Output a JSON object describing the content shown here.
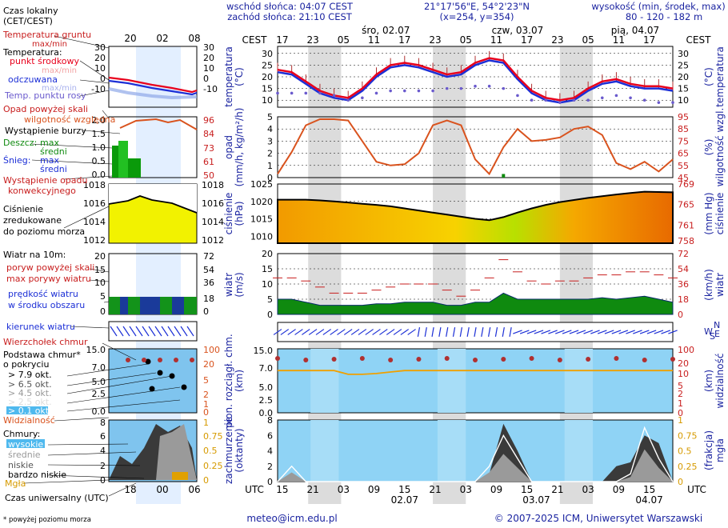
{
  "header": {
    "sunrise": "wschód słońca: 04:07 CEST",
    "sunset": "zachód słońca: 21:10 CEST",
    "coords": "21°17'56\"E, 54°2'23\"N",
    "grid": "(x=254, y=354)",
    "height_title": "wysokość (min, środek, max)",
    "height_values": "80 - 120 - 182 m"
  },
  "legend": {
    "local_time_1": "Czas lokalny",
    "local_time_2": "(CET/CEST)",
    "soil_temp_1": "Temperatura gruntu",
    "soil_temp_2": "max/min",
    "temperature": "Temperatura:",
    "center_point": "punkt środkowy",
    "maxmin1": "max/min",
    "feels": "odczuwana",
    "maxmin2": "max/min",
    "dew": "Temp. punktu rosy",
    "precip_above": "Opad powyżej skali",
    "humidity": "wilgotność względna",
    "storm": "Wystąpienie burzy",
    "rain": "Deszcz:",
    "max": "max",
    "mean": "średni",
    "snow": "Śnieg:",
    "conv_1": "Wystąpienie opadu",
    "conv_2": "konwekcyjnego",
    "press_1": "Ciśnienie",
    "press_2": "zredukowane",
    "press_3": "do poziomu morza",
    "wind_1": "Wiatr na 10m:",
    "gust_above": "poryw powyżej skali",
    "gust_max": "max porywy wiatru",
    "wind_speed_1": "prędkość wiatru",
    "wind_speed_2": "w środku obszaru",
    "wind_dir": "kierunek wiatru",
    "cloud_top": "Wierzchołek chmur",
    "cloud_base_1": "Podstawa chmur*",
    "cloud_base_2": "o pokryciu",
    "okt1": "> 7.9 okt.",
    "okt2": "> 6.5 okt.",
    "okt3": "> 4.5 okt.",
    "okt4": "> 2.5 okt.",
    "okt5": "> 0.1 okt.",
    "visibility": "Widzialność",
    "clouds": "Chmury:",
    "high": "wysokie",
    "middle": "średnie",
    "low": "niskie",
    "very_low": "bardzo niskie",
    "fog": "Mgła",
    "utc": "Czas uniwersalny (UTC)",
    "footnote": "* powyżej poziomu morza",
    "mini_top_ticks": [
      "20",
      "02",
      "08"
    ],
    "mini_bottom_ticks": [
      "18",
      "00",
      "06"
    ]
  },
  "axis_labels": {
    "temp_left": "temperatura",
    "temp_left_unit": "(°C)",
    "temp_right": "temperatura",
    "temp_right_unit": "(°C)",
    "precip_left": "opad",
    "precip_left_unit": "(mm/h, kg/m²/h)",
    "hum_right": "wilgotność wzgl.",
    "hum_right_unit": "(%)",
    "press_left": "ciśnienie",
    "press_left_unit": "(hPa)",
    "press_right": "ciśnienie",
    "press_right_unit": "(mm Hg)",
    "wind_left": "wiatr",
    "wind_left_unit": "(m/s)",
    "wind_right": "wiatr",
    "wind_right_unit": "(km/h)",
    "cloud_left_1": "pion. rozciągł. chm.",
    "cloud_left_2": "(km)",
    "vis_right": "widzialność",
    "vis_right_unit": "(km)",
    "cov_left_1": "zachmurzenie",
    "cov_left_2": "(oktanty)",
    "fog_right": "mgła",
    "fog_right_unit": "(frakcja)",
    "cest": "CEST",
    "utc": "UTC",
    "compass": [
      "N",
      "W",
      "E",
      "S"
    ]
  },
  "time_axis": {
    "days_top": [
      "śro, 02.07",
      "czw, 03.07",
      "pią, 04.07"
    ],
    "cest_ticks": [
      "17",
      "23",
      "05",
      "11",
      "17",
      "23",
      "05",
      "11",
      "17",
      "23",
      "05",
      "11",
      "17"
    ],
    "utc_ticks": [
      "15",
      "21",
      "03",
      "09",
      "15",
      "21",
      "03",
      "09",
      "15",
      "21",
      "03",
      "09",
      "15"
    ],
    "days_bottom": [
      "02.07",
      "03.07",
      "04.07"
    ]
  },
  "footer": {
    "email": "meteo@icm.edu.pl",
    "copyright": "© 2007-2025 ICM, Uniwersytet Warszawski"
  },
  "colors": {
    "night_band": "#dcdcdc",
    "sky": "#8fd3f5",
    "temp": "#e8001c",
    "feels": "#1c2fd6",
    "dew": "#6a5acd",
    "humidity": "#d9531e",
    "pressure_fill": "#f29a00",
    "wind_fill": "#0f8a0f",
    "axis_blue": "#1a23a0",
    "axis_red": "#c81e1e"
  },
  "chart_data": [
    {
      "type": "line",
      "title": "temperatura (°C)",
      "x_hours": [
        0,
        3,
        6,
        9,
        12,
        15,
        18,
        21,
        24,
        27,
        30,
        33,
        36,
        39,
        42,
        45,
        48,
        51,
        54,
        57,
        60,
        63,
        66,
        69,
        72,
        75,
        78,
        81,
        84
      ],
      "ylim": [
        7,
        33
      ],
      "yticks": [
        10,
        15,
        20,
        25,
        30
      ],
      "series": [
        {
          "name": "temperatura",
          "values": [
            23,
            22,
            18,
            14,
            12,
            11,
            15,
            21,
            25,
            26,
            25,
            23,
            21,
            22,
            26,
            28,
            27,
            20,
            14,
            11,
            10,
            11,
            15,
            18,
            19,
            17,
            16,
            16,
            15
          ]
        },
        {
          "name": "odczuwana",
          "values": [
            22,
            21,
            17,
            13,
            11,
            10,
            14,
            20,
            24,
            25,
            24,
            22,
            20,
            21,
            25,
            27,
            26,
            19,
            13,
            10,
            9,
            10,
            14,
            17,
            18,
            16,
            15,
            15,
            14
          ]
        },
        {
          "name": "punkt rosy",
          "values": [
            13,
            13,
            13,
            13,
            12,
            10,
            11,
            13,
            14,
            14,
            14,
            14,
            15,
            15,
            16,
            16,
            15,
            12,
            10,
            10,
            9,
            10,
            10,
            11,
            12,
            11,
            10,
            9,
            9
          ]
        }
      ]
    },
    {
      "type": "line",
      "title": "opad (mm/h) / wilgotność wzgl. (%)",
      "x_hours": [
        0,
        3,
        6,
        9,
        12,
        15,
        18,
        21,
        24,
        27,
        30,
        33,
        36,
        39,
        42,
        45,
        48,
        51,
        54,
        57,
        60,
        63,
        66,
        69,
        72,
        75,
        78,
        81,
        84
      ],
      "ylim": [
        0,
        5
      ],
      "yticks": [
        0,
        1,
        2,
        3,
        4,
        5
      ],
      "y2lim": [
        45,
        95
      ],
      "y2ticks": [
        45,
        55,
        65,
        75,
        85,
        95
      ],
      "series": [
        {
          "name": "wilgotność",
          "values": [
            48,
            66,
            88,
            93,
            93,
            92,
            75,
            58,
            55,
            56,
            65,
            88,
            92,
            88,
            60,
            48,
            70,
            85,
            75,
            76,
            78,
            85,
            87,
            80,
            57,
            52,
            58,
            50,
            60
          ]
        },
        {
          "name": "opad",
          "values": [
            0,
            0,
            0,
            0,
            0,
            0,
            0,
            0,
            0,
            0,
            0,
            0,
            0,
            0,
            0,
            0,
            0.1,
            0,
            0,
            0,
            0,
            0,
            0,
            0,
            0,
            0,
            0,
            0,
            0
          ]
        }
      ]
    },
    {
      "type": "area",
      "title": "ciśnienie (hPa)",
      "x_hours": [
        0,
        3,
        6,
        9,
        12,
        15,
        18,
        21,
        24,
        27,
        30,
        33,
        36,
        39,
        42,
        45,
        48,
        51,
        54,
        57,
        60,
        63,
        66,
        69,
        72,
        75,
        78,
        81,
        84
      ],
      "ylim": [
        1008,
        1025
      ],
      "yticks": [
        1010,
        1015,
        1020,
        1025
      ],
      "y2ticks": [
        758,
        761,
        765,
        769
      ],
      "values": [
        1020.5,
        1020.5,
        1020.5,
        1020.3,
        1020.0,
        1019.7,
        1019.3,
        1019.0,
        1018.6,
        1018.0,
        1017.4,
        1016.8,
        1016.2,
        1015.6,
        1015.0,
        1014.6,
        1015.5,
        1016.8,
        1018.0,
        1019.0,
        1019.8,
        1020.4,
        1021.0,
        1021.5,
        1022.0,
        1022.4,
        1022.8,
        1022.7,
        1022.6
      ]
    },
    {
      "type": "area",
      "title": "wiatr (m/s)",
      "x_hours": [
        0,
        3,
        6,
        9,
        12,
        15,
        18,
        21,
        24,
        27,
        30,
        33,
        36,
        39,
        42,
        45,
        48,
        51,
        54,
        57,
        60,
        63,
        66,
        69,
        72,
        75,
        78,
        81,
        84
      ],
      "ylim": [
        0,
        20
      ],
      "yticks": [
        0,
        5,
        10,
        15,
        20
      ],
      "y2ticks": [
        0,
        18,
        36,
        54,
        72
      ],
      "series": [
        {
          "name": "prędkość wiatru",
          "values": [
            5,
            5,
            4,
            3,
            3,
            3,
            3,
            3.5,
            3.5,
            4,
            4,
            4,
            3,
            3,
            4,
            4,
            7,
            5,
            5,
            5,
            5,
            5,
            5,
            5.5,
            5,
            5.5,
            6,
            5,
            4
          ]
        },
        {
          "name": "max porywy",
          "values": [
            12,
            12,
            11,
            9,
            7,
            7,
            7,
            8,
            9,
            10,
            10,
            10,
            8,
            6,
            8,
            12,
            18,
            14,
            11,
            10,
            11,
            11,
            12,
            13,
            13,
            14,
            14,
            13,
            12
          ]
        }
      ]
    },
    {
      "type": "line",
      "title": "widzialność (km)",
      "x_hours": [
        0,
        3,
        6,
        9,
        12,
        15,
        18,
        21,
        24,
        27,
        30,
        33,
        36,
        39,
        42,
        45,
        48,
        51,
        54,
        57,
        60,
        63,
        66,
        69,
        72,
        75,
        78,
        81,
        84
      ],
      "ylim": [
        0,
        100
      ],
      "y2ticks": [
        0,
        1,
        2,
        5,
        10,
        20,
        100
      ],
      "yticks": [
        0.0,
        2.5,
        5.0,
        7.0,
        15.0
      ],
      "values": [
        20,
        20,
        20,
        20,
        20,
        15,
        15,
        16,
        18,
        20,
        20,
        20,
        20,
        20,
        20,
        20,
        20,
        20,
        20,
        20,
        20,
        20,
        20,
        20,
        20,
        20,
        20,
        20,
        20
      ]
    },
    {
      "type": "area",
      "title": "zachmurzenie (oktanty) / mgła (frakcja)",
      "x_hours": [
        0,
        3,
        6,
        9,
        12,
        15,
        18,
        21,
        24,
        27,
        30,
        33,
        36,
        39,
        42,
        45,
        48,
        51,
        54,
        57,
        60,
        63,
        66,
        69,
        72,
        75,
        78,
        81,
        84
      ],
      "ylim": [
        0,
        8
      ],
      "yticks": [
        0,
        2,
        4,
        6,
        8
      ],
      "y2ticks": [
        0,
        0.25,
        0.5,
        0.75,
        1
      ],
      "series": [
        {
          "name": "niskie",
          "values": [
            0,
            0,
            0,
            0,
            0,
            0,
            0,
            0,
            0,
            0,
            0,
            0,
            0,
            0,
            0,
            1,
            7.5,
            4,
            0,
            0,
            0,
            0,
            0,
            0,
            2,
            2.5,
            6,
            5,
            0
          ]
        },
        {
          "name": "wysokie",
          "values": [
            0,
            2,
            0,
            0,
            0,
            0,
            0,
            0,
            0,
            0,
            0,
            0,
            0,
            0,
            0,
            2,
            6,
            3,
            0,
            0,
            0,
            0,
            0,
            0,
            0,
            1,
            7,
            3,
            0
          ]
        }
      ]
    }
  ]
}
